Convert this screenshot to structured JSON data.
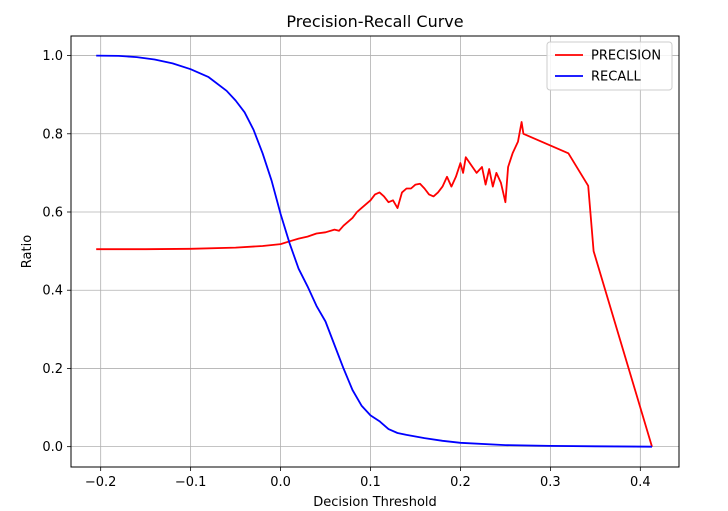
{
  "chart_data": {
    "type": "line",
    "title": "Precision-Recall Curve",
    "xlabel": "Decision Threshold",
    "ylabel": "Ratio",
    "xlim": [
      -0.233,
      0.443
    ],
    "ylim": [
      -0.052,
      1.05
    ],
    "xticks": [
      -0.2,
      -0.1,
      0.0,
      0.1,
      0.2,
      0.3,
      0.4
    ],
    "xtick_labels": [
      "−0.2",
      "−0.1",
      "0.0",
      "0.1",
      "0.2",
      "0.3",
      "0.4"
    ],
    "yticks": [
      0.0,
      0.2,
      0.4,
      0.6,
      0.8,
      1.0
    ],
    "ytick_labels": [
      "0.0",
      "0.2",
      "0.4",
      "0.6",
      "0.8",
      "1.0"
    ],
    "grid": true,
    "legend_position": "top-right",
    "series": [
      {
        "name": "PRECISION",
        "color": "#ff0000",
        "x": [
          -0.205,
          -0.15,
          -0.1,
          -0.05,
          -0.02,
          0.0,
          0.01,
          0.02,
          0.03,
          0.04,
          0.05,
          0.06,
          0.065,
          0.07,
          0.08,
          0.085,
          0.09,
          0.095,
          0.1,
          0.105,
          0.11,
          0.115,
          0.12,
          0.125,
          0.13,
          0.135,
          0.14,
          0.145,
          0.15,
          0.155,
          0.16,
          0.165,
          0.17,
          0.175,
          0.18,
          0.185,
          0.19,
          0.195,
          0.2,
          0.203,
          0.206,
          0.212,
          0.218,
          0.224,
          0.228,
          0.232,
          0.236,
          0.24,
          0.245,
          0.25,
          0.253,
          0.258,
          0.264,
          0.268,
          0.27,
          0.32,
          0.342,
          0.348,
          0.413
        ],
        "y": [
          0.505,
          0.505,
          0.506,
          0.509,
          0.513,
          0.518,
          0.525,
          0.532,
          0.537,
          0.545,
          0.548,
          0.555,
          0.552,
          0.565,
          0.585,
          0.6,
          0.61,
          0.62,
          0.63,
          0.645,
          0.65,
          0.64,
          0.625,
          0.63,
          0.61,
          0.65,
          0.66,
          0.66,
          0.67,
          0.672,
          0.66,
          0.645,
          0.64,
          0.65,
          0.665,
          0.69,
          0.665,
          0.69,
          0.725,
          0.7,
          0.74,
          0.72,
          0.7,
          0.715,
          0.67,
          0.71,
          0.665,
          0.7,
          0.675,
          0.625,
          0.715,
          0.75,
          0.78,
          0.83,
          0.8,
          0.75,
          0.667,
          0.5,
          0.0
        ]
      },
      {
        "name": "RECALL",
        "color": "#0000ff",
        "x": [
          -0.205,
          -0.18,
          -0.16,
          -0.14,
          -0.12,
          -0.1,
          -0.08,
          -0.06,
          -0.05,
          -0.04,
          -0.03,
          -0.02,
          -0.01,
          0.0,
          0.01,
          0.02,
          0.03,
          0.04,
          0.05,
          0.06,
          0.07,
          0.08,
          0.09,
          0.1,
          0.11,
          0.12,
          0.13,
          0.14,
          0.16,
          0.18,
          0.2,
          0.25,
          0.3,
          0.35,
          0.413
        ],
        "y": [
          1.0,
          0.999,
          0.996,
          0.99,
          0.98,
          0.965,
          0.945,
          0.91,
          0.885,
          0.855,
          0.81,
          0.75,
          0.68,
          0.595,
          0.52,
          0.455,
          0.41,
          0.36,
          0.32,
          0.26,
          0.2,
          0.145,
          0.105,
          0.08,
          0.065,
          0.045,
          0.035,
          0.03,
          0.022,
          0.015,
          0.01,
          0.004,
          0.002,
          0.001,
          0.0
        ]
      }
    ]
  }
}
